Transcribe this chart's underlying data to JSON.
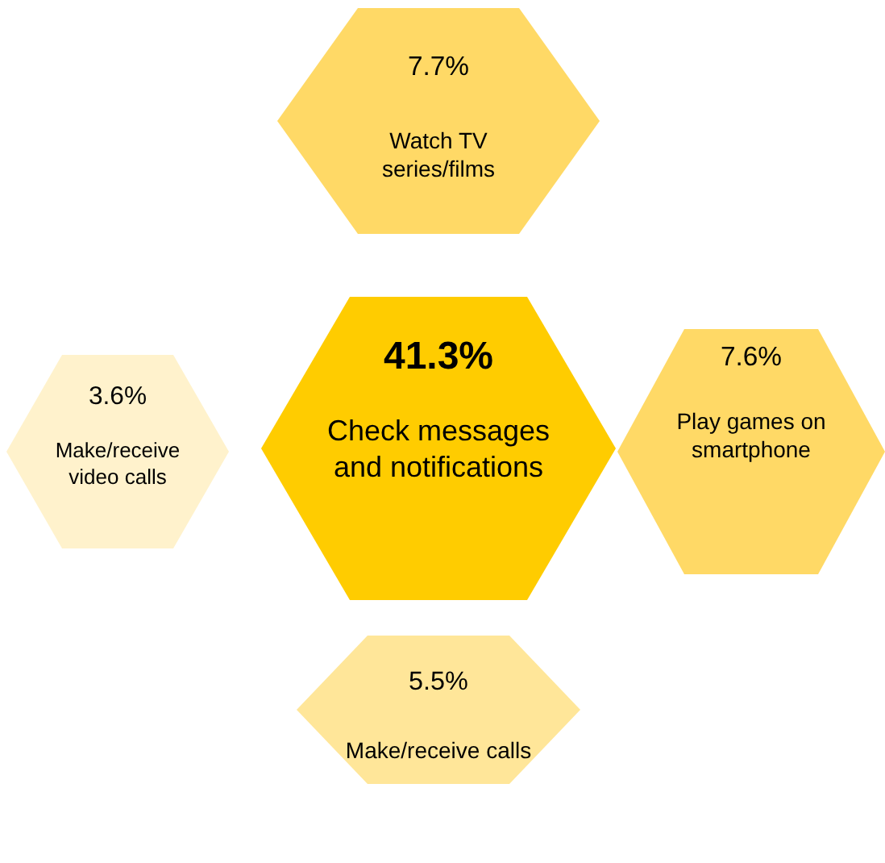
{
  "chart_data": {
    "type": "other",
    "categories": [
      "Watch TV series/films",
      "Make/receive video calls",
      "Check messages and notifications",
      "Play games on smartphone",
      "Make/receive calls"
    ],
    "values": [
      7.7,
      3.6,
      41.3,
      7.6,
      5.5
    ],
    "value_labels": [
      "7.7%",
      "3.6%",
      "41.3%",
      "7.6%",
      "5.5%"
    ],
    "colors": [
      "#ffd966",
      "#fff2cc",
      "#ffcc00",
      "#ffd966",
      "#ffe699"
    ]
  }
}
